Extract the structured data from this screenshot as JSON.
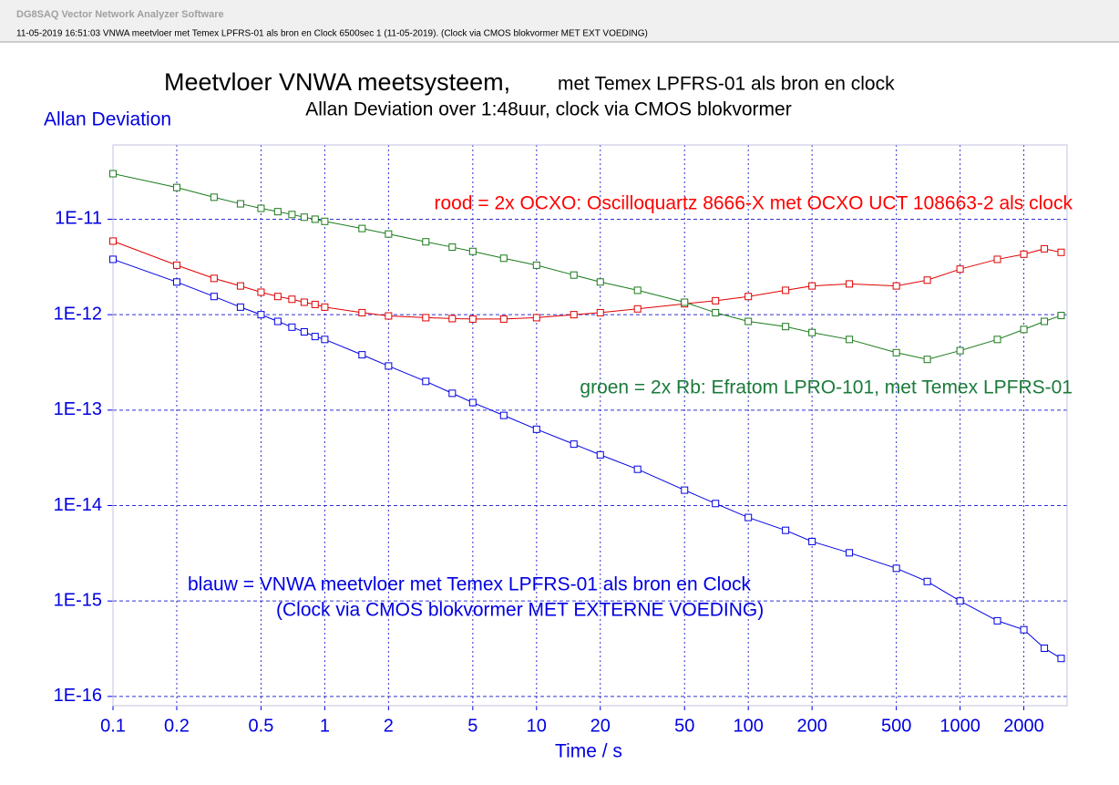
{
  "window_title": "DG8SAQ Vector Network Analyzer Software",
  "info_line": "11-05-2019   16:51:03   VNWA meetvloer met Temex LPFRS-01 als bron en Clock 6500sec 1 (11-05-2019). (Clock via CMOS blokvormer MET EXT VOEDING)",
  "chart_data": {
    "type": "line",
    "title": "Meetvloer VNWA meetsysteem,",
    "title_suffix": "met Temex LPFRS-01 als bron en clock",
    "subtitle": "Allan Deviation over 1:48uur, clock  via CMOS blokvormer",
    "y_label": "Allan Deviation",
    "x_label": "Time / s",
    "annotations": [
      "rood  = 2x OCXO:  Oscilloquartz 8666-X  met OCXO UCT 108663-2 als clock",
      "groen = 2x Rb: Efratom LPRO-101, met Temex LPFRS-01",
      "blauw = VNWA meetvloer met Temex LPFRS-01 als bron en Clock",
      "(Clock via CMOS blokvormer MET EXTERNE VOEDING)"
    ],
    "x_scale": "log",
    "y_scale": "log",
    "grid": true,
    "markers": "square",
    "x": [
      0.1,
      0.2,
      0.3,
      0.4,
      0.5,
      0.6,
      0.7,
      0.8,
      0.9,
      1,
      1.5,
      2,
      3,
      4,
      5,
      7,
      10,
      15,
      20,
      30,
      50,
      70,
      100,
      150,
      200,
      300,
      500,
      700,
      1000,
      1500,
      2000,
      2500,
      3000
    ],
    "series": [
      {
        "color": "#e00000",
        "values": [
          5.9e-12,
          3.3e-12,
          2.4e-12,
          2e-12,
          1.72e-12,
          1.55e-12,
          1.45e-12,
          1.35e-12,
          1.28e-12,
          1.2e-12,
          1.05e-12,
          9.7e-13,
          9.3e-13,
          9.1e-13,
          9e-13,
          9e-13,
          9.3e-13,
          1e-12,
          1.05e-12,
          1.15e-12,
          1.3e-12,
          1.4e-12,
          1.55e-12,
          1.8e-12,
          2e-12,
          2.1e-12,
          2e-12,
          2.3e-12,
          3e-12,
          3.8e-12,
          4.3e-12,
          4.9e-12,
          4.5e-12
        ]
      },
      {
        "color": "#1a7a1a",
        "values": [
          3e-11,
          2.15e-11,
          1.7e-11,
          1.45e-11,
          1.3e-11,
          1.2e-11,
          1.12e-11,
          1.05e-11,
          1e-11,
          9.5e-12,
          8e-12,
          7e-12,
          5.8e-12,
          5.1e-12,
          4.6e-12,
          3.9e-12,
          3.3e-12,
          2.6e-12,
          2.2e-12,
          1.8e-12,
          1.35e-12,
          1.05e-12,
          8.5e-13,
          7.5e-13,
          6.5e-13,
          5.5e-13,
          4e-13,
          3.4e-13,
          4.2e-13,
          5.5e-13,
          7e-13,
          8.5e-13,
          9.8e-13
        ]
      },
      {
        "color": "#0000e0",
        "values": [
          3.8e-12,
          2.2e-12,
          1.55e-12,
          1.2e-12,
          1e-12,
          8.5e-13,
          7.4e-13,
          6.6e-13,
          5.9e-13,
          5.5e-13,
          3.8e-13,
          2.9e-13,
          2e-13,
          1.5e-13,
          1.2e-13,
          8.8e-14,
          6.3e-14,
          4.4e-14,
          3.4e-14,
          2.4e-14,
          1.45e-14,
          1.05e-14,
          7.5e-15,
          5.5e-15,
          4.2e-15,
          3.2e-15,
          2.2e-15,
          1.6e-15,
          1e-15,
          6.2e-16,
          5e-16,
          3.2e-16,
          2.5e-16
        ]
      }
    ],
    "xlim": [
      0.1,
      3200
    ],
    "xticks": [
      0.1,
      0.2,
      0.5,
      1,
      2,
      5,
      10,
      20,
      50,
      100,
      200,
      500,
      1000,
      2000
    ],
    "ylim": [
      8e-17,
      6e-11
    ],
    "yticks": [
      {
        "value": 1e-16,
        "label": "1E-16"
      },
      {
        "value": 1e-15,
        "label": "1E-15"
      },
      {
        "value": 1e-14,
        "label": "1E-14"
      },
      {
        "value": 1e-13,
        "label": "1E-13"
      },
      {
        "value": 1e-12,
        "label": "1E-12"
      },
      {
        "value": 1e-11,
        "label": "1E-11"
      }
    ]
  }
}
